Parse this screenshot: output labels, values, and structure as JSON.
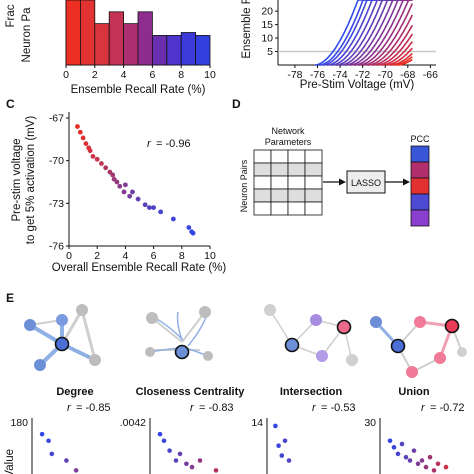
{
  "panels": {
    "C": "C",
    "D": "D",
    "E": "E"
  },
  "chart_data": [
    {
      "id": "A",
      "type": "bar",
      "xlabel": "Ensemble Recall Rate (%)",
      "ylabel": "Neuron Pa",
      "ylabel_prefix": "Frac",
      "xticks": [
        "0",
        "2",
        "4",
        "6",
        "8",
        "10"
      ],
      "xlim": [
        0,
        10
      ],
      "bin_width": 1,
      "bin_starts": [
        0,
        1,
        2,
        3,
        4,
        5,
        6,
        7,
        8,
        9
      ],
      "values": [
        0.22,
        0.22,
        0.14,
        0.18,
        0.14,
        0.18,
        0.1,
        0.1,
        0.11,
        0.1
      ],
      "ylim": [
        0,
        0.22
      ],
      "colors": [
        "#ec2f22",
        "#e33232",
        "#d8363e",
        "#c43356",
        "#ad2f72",
        "#8f2d8e",
        "#6a2fae",
        "#4e33cc",
        "#3c3ad9",
        "#3240e0"
      ]
    },
    {
      "id": "B",
      "type": "line",
      "xlabel": "Pre-Stim Voltage (mV)",
      "ylabel": "Ensemble F",
      "xticks": [
        "-78",
        "-76",
        "-74",
        "-72",
        "-70",
        "-68",
        "-66"
      ],
      "yticks": [
        "5",
        "10",
        "15",
        "20",
        "25"
      ],
      "xlim": [
        -79.5,
        -65.5
      ],
      "ylim": [
        0,
        26
      ],
      "threshold": 5,
      "curve_onsets": [
        -76.2,
        -75.8,
        -75.5,
        -75.1,
        -74.7,
        -74.3,
        -73.9,
        -73.5,
        -73.1,
        -72.7,
        -72.3,
        -71.9,
        -71.5,
        -71.1,
        -70.7,
        -70.3,
        -69.9,
        -69.5,
        -69.2,
        -68.9
      ],
      "curve_colors": [
        "#2f4bf0",
        "#3848e6",
        "#4145dc",
        "#4a42d2",
        "#5540c6",
        "#603dbb",
        "#6b3aaf",
        "#7637a3",
        "#813498",
        "#8c318c",
        "#973080",
        "#a22e74",
        "#ad2d68",
        "#b82b5c",
        "#c32a50",
        "#cc2b45",
        "#d52c3b",
        "#de2d31",
        "#e62e28",
        "#ee3020"
      ]
    },
    {
      "id": "C",
      "type": "scatter",
      "xlabel": "Overall Ensemble Recall Rate (%)",
      "ylabel": [
        "Pre-stim voltage",
        "to get 5% activation (mV)"
      ],
      "xticks": [
        "0",
        "2",
        "4",
        "6",
        "8",
        "10"
      ],
      "yticks": [
        "-67",
        "-70",
        "-73",
        "-76"
      ],
      "xlim": [
        0,
        10
      ],
      "ylim": [
        -76,
        -67
      ],
      "r_label": "r",
      "r_value": "= -0.96",
      "x": [
        0.6,
        0.8,
        1.0,
        1.2,
        1.4,
        1.5,
        1.7,
        2.0,
        2.3,
        2.6,
        2.9,
        3.1,
        3.2,
        3.4,
        3.6,
        3.9,
        4.0,
        4.3,
        4.5,
        4.9,
        5.4,
        5.7,
        6.0,
        6.5,
        7.4,
        8.5,
        8.7,
        8.8
      ],
      "y": [
        -67.6,
        -68.0,
        -68.4,
        -68.8,
        -69.1,
        -69.3,
        -69.7,
        -69.9,
        -70.2,
        -70.5,
        -70.8,
        -71.0,
        -71.3,
        -71.5,
        -71.8,
        -72.2,
        -71.7,
        -72.5,
        -72.2,
        -72.7,
        -73.1,
        -73.3,
        -73.3,
        -73.6,
        -74.1,
        -74.7,
        -75.0,
        -75.1
      ],
      "colors": [
        "#ea2f26",
        "#e62f2b",
        "#e22f30",
        "#dc3036",
        "#d7313b",
        "#d33140",
        "#cd3245",
        "#c6334c",
        "#bd3455",
        "#b3355e",
        "#a93667",
        "#a13770",
        "#9a3878",
        "#93397f",
        "#8b3a87",
        "#823b90",
        "#803c92",
        "#773d9c",
        "#6f3ea4",
        "#6540ae",
        "#5a41ba",
        "#5342c1",
        "#4d43c7",
        "#4744ce",
        "#3f45d7",
        "#3746e0",
        "#3547e2",
        "#3347e4"
      ]
    },
    {
      "id": "E1",
      "type": "scatter",
      "title": "Degree",
      "r_label": "r",
      "r_value": "= -0.85",
      "ylabel": "er Value",
      "ytick_top": "180",
      "x": [
        1.0,
        1.8,
        2.2,
        3.0,
        4.0,
        4.5,
        5.2,
        6.0,
        7.0,
        8.0,
        8.6,
        9.5
      ],
      "y": [
        160,
        150,
        130,
        100,
        120,
        95,
        105,
        90,
        80,
        75,
        92,
        70
      ],
      "colors": [
        "#3347e4",
        "#3a46dc",
        "#4245d3",
        "#5043c4",
        "#5e41b6",
        "#6c3fa7",
        "#7a3d99",
        "#88398b",
        "#98367d",
        "#a9336c",
        "#ba305c",
        "#cc2d4c"
      ]
    },
    {
      "id": "E2",
      "type": "scatter",
      "title": "Closeness Centrality",
      "r_label": "r",
      "r_value": "= -0.83",
      "ytick_top": ".0042",
      "x": [
        1.0,
        1.5,
        2.2,
        3.0,
        3.5,
        4.3,
        5.0,
        6.0,
        7.0,
        8.0
      ],
      "y": [
        0.004,
        0.0039,
        0.00375,
        0.0036,
        0.0037,
        0.00355,
        0.0035,
        0.0036,
        0.0034,
        0.00345
      ],
      "colors": [
        "#3347e4",
        "#3e46d8",
        "#4a44cc",
        "#5842bd",
        "#6640ae",
        "#733d9f",
        "#823a90",
        "#913781",
        "#a23471",
        "#b33160"
      ]
    },
    {
      "id": "E3",
      "type": "scatter",
      "title": "Intersection",
      "r_label": "r",
      "r_value": "= -0.53",
      "ytick_top": "14",
      "x": [
        0.8,
        1.2,
        1.6,
        2.0,
        2.5
      ],
      "y": [
        13.5,
        11.5,
        10.5,
        12.0,
        10.0
      ],
      "colors": [
        "#3347e4",
        "#3a46dc",
        "#4245d3",
        "#4a44cc",
        "#5043c4"
      ]
    },
    {
      "id": "E4",
      "type": "scatter",
      "title": "Union",
      "r_label": "r",
      "r_value": "= -0.72",
      "ytick_top": "30",
      "x": [
        1.0,
        1.5,
        2.0,
        2.5,
        3.0,
        3.5,
        4.0,
        4.5,
        5.0,
        5.5,
        6.0,
        6.5,
        7.0,
        7.5,
        8.0
      ],
      "y": [
        27,
        26,
        25,
        26.5,
        24.5,
        24,
        25.5,
        23.5,
        24,
        23,
        24.5,
        22.5,
        23.5,
        22,
        23
      ],
      "colors": [
        "#3347e4",
        "#3c46da",
        "#4644cf",
        "#5043c4",
        "#5b42b9",
        "#6640ae",
        "#713ea2",
        "#7c3c97",
        "#883a8b",
        "#93387f",
        "#9f3673",
        "#aa3467",
        "#b6325b",
        "#c2304f",
        "#ce2e43"
      ]
    }
  ],
  "diagram": {
    "header_line1": "Network",
    "header_line2": "Parameters",
    "row_label": "Neuron Pairs",
    "lasso_label": "LASSO",
    "pcc_label": "PCC",
    "pcc_colors": [
      "#3a56d8",
      "#b12f6c",
      "#e33030",
      "#4d4ad6",
      "#8a3fcf"
    ]
  }
}
